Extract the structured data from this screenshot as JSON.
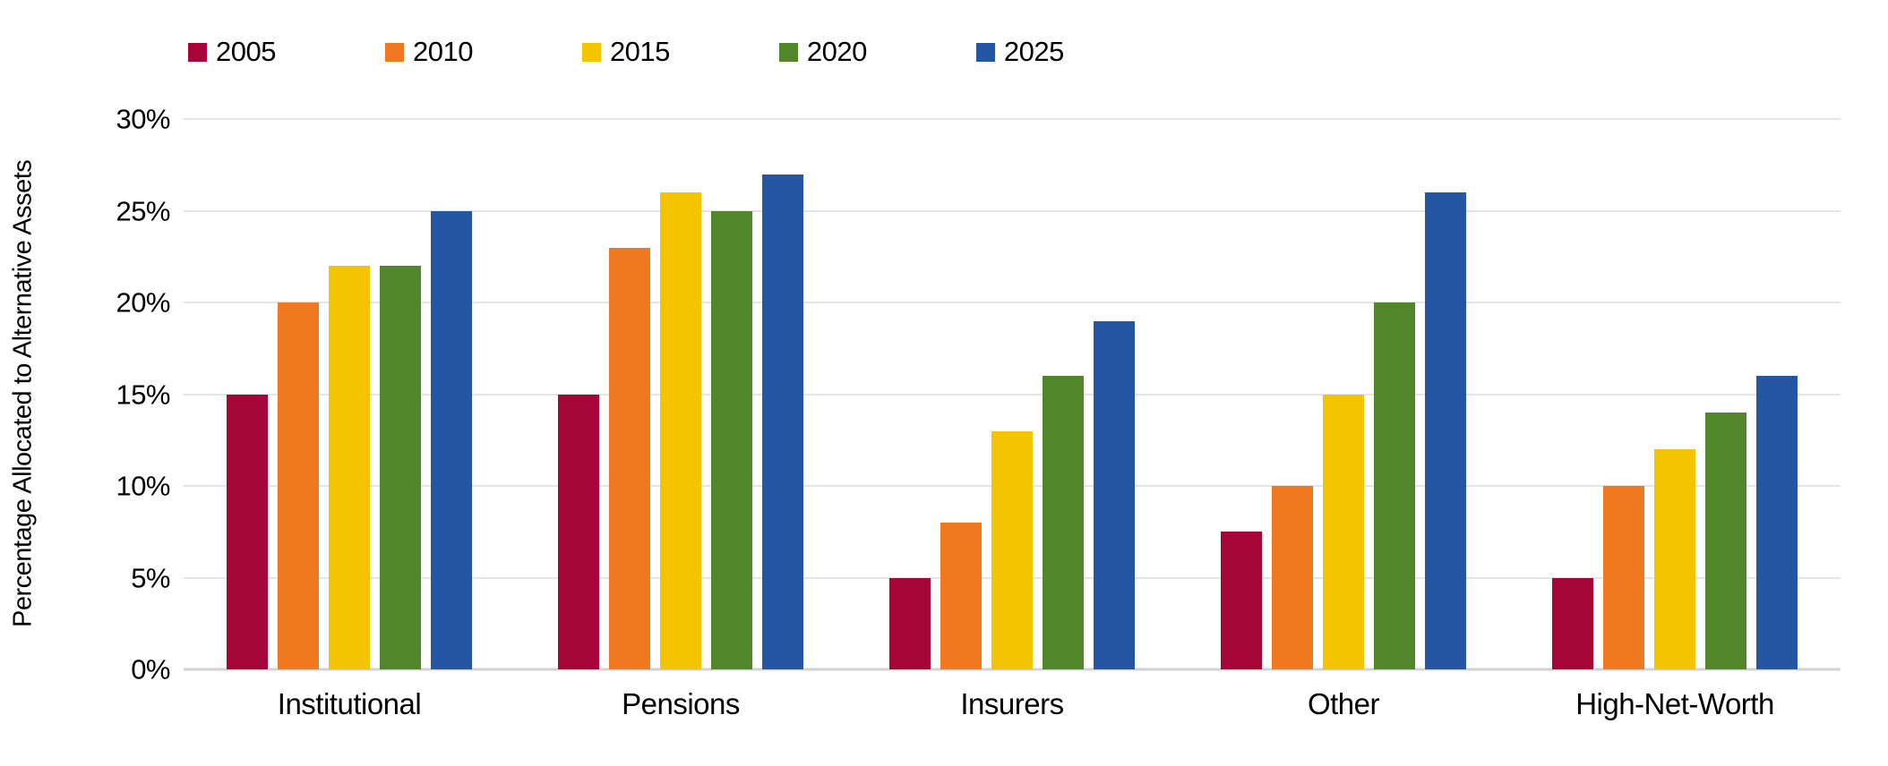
{
  "chart_data": {
    "type": "bar",
    "title": "",
    "categories": [
      "Institutional",
      "Pensions",
      "Insurers",
      "Other",
      "High-Net-Worth"
    ],
    "series": [
      {
        "name": "2005",
        "color": "#A6053A",
        "values": [
          15,
          15,
          5,
          7.5,
          5
        ]
      },
      {
        "name": "2010",
        "color": "#F07821",
        "values": [
          20,
          23,
          8,
          10,
          10
        ]
      },
      {
        "name": "2015",
        "color": "#F5C400",
        "values": [
          22,
          26,
          13,
          15,
          12
        ]
      },
      {
        "name": "2020",
        "color": "#52862A",
        "values": [
          22,
          25,
          16,
          20,
          14
        ]
      },
      {
        "name": "2025",
        "color": "#2456A4",
        "values": [
          25,
          27,
          19,
          26,
          16
        ]
      }
    ],
    "xlabel": "",
    "ylabel": "Percentage Allocated to Alternative Assets",
    "ylim": [
      0,
      30
    ],
    "ytick_step": 5,
    "ytick_labels": [
      "0%",
      "5%",
      "10%",
      "15%",
      "20%",
      "25%",
      "30%"
    ],
    "grid": true,
    "legend_position": "top-left"
  },
  "colors": {
    "background": "#FFFFFF",
    "gridline": "#E5E5E5",
    "axis_line": "#D2D2D2",
    "text": "#000000"
  }
}
